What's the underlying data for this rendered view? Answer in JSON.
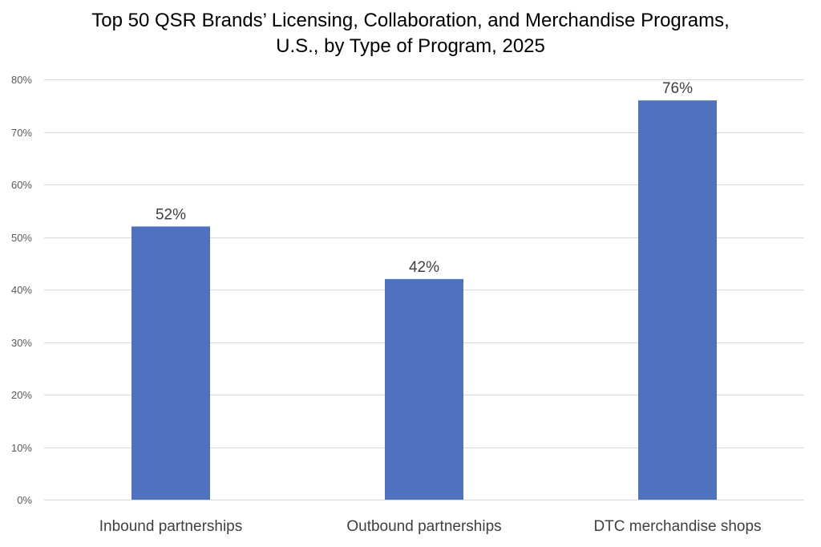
{
  "chart_data": {
    "type": "bar",
    "title_lines": [
      "Top 50 QSR Brands’ Licensing, Collaboration, and Merchandise Programs,",
      "U.S., by Type of Program, 2025"
    ],
    "categories": [
      "Inbound partnerships",
      "Outbound partnerships",
      "DTC merchandise shops"
    ],
    "values": [
      52,
      42,
      76
    ],
    "data_labels": [
      "52%",
      "42%",
      "76%"
    ],
    "ylim": [
      0,
      80
    ],
    "yticks": [
      0,
      10,
      20,
      30,
      40,
      50,
      60,
      70,
      80
    ],
    "ytick_labels": [
      "0%",
      "10%",
      "20%",
      "30%",
      "40%",
      "50%",
      "60%",
      "70%",
      "80%"
    ],
    "grid": true,
    "legend": "none",
    "bar_color": "#4E72BE",
    "grid_color": "#D9D9D9"
  }
}
